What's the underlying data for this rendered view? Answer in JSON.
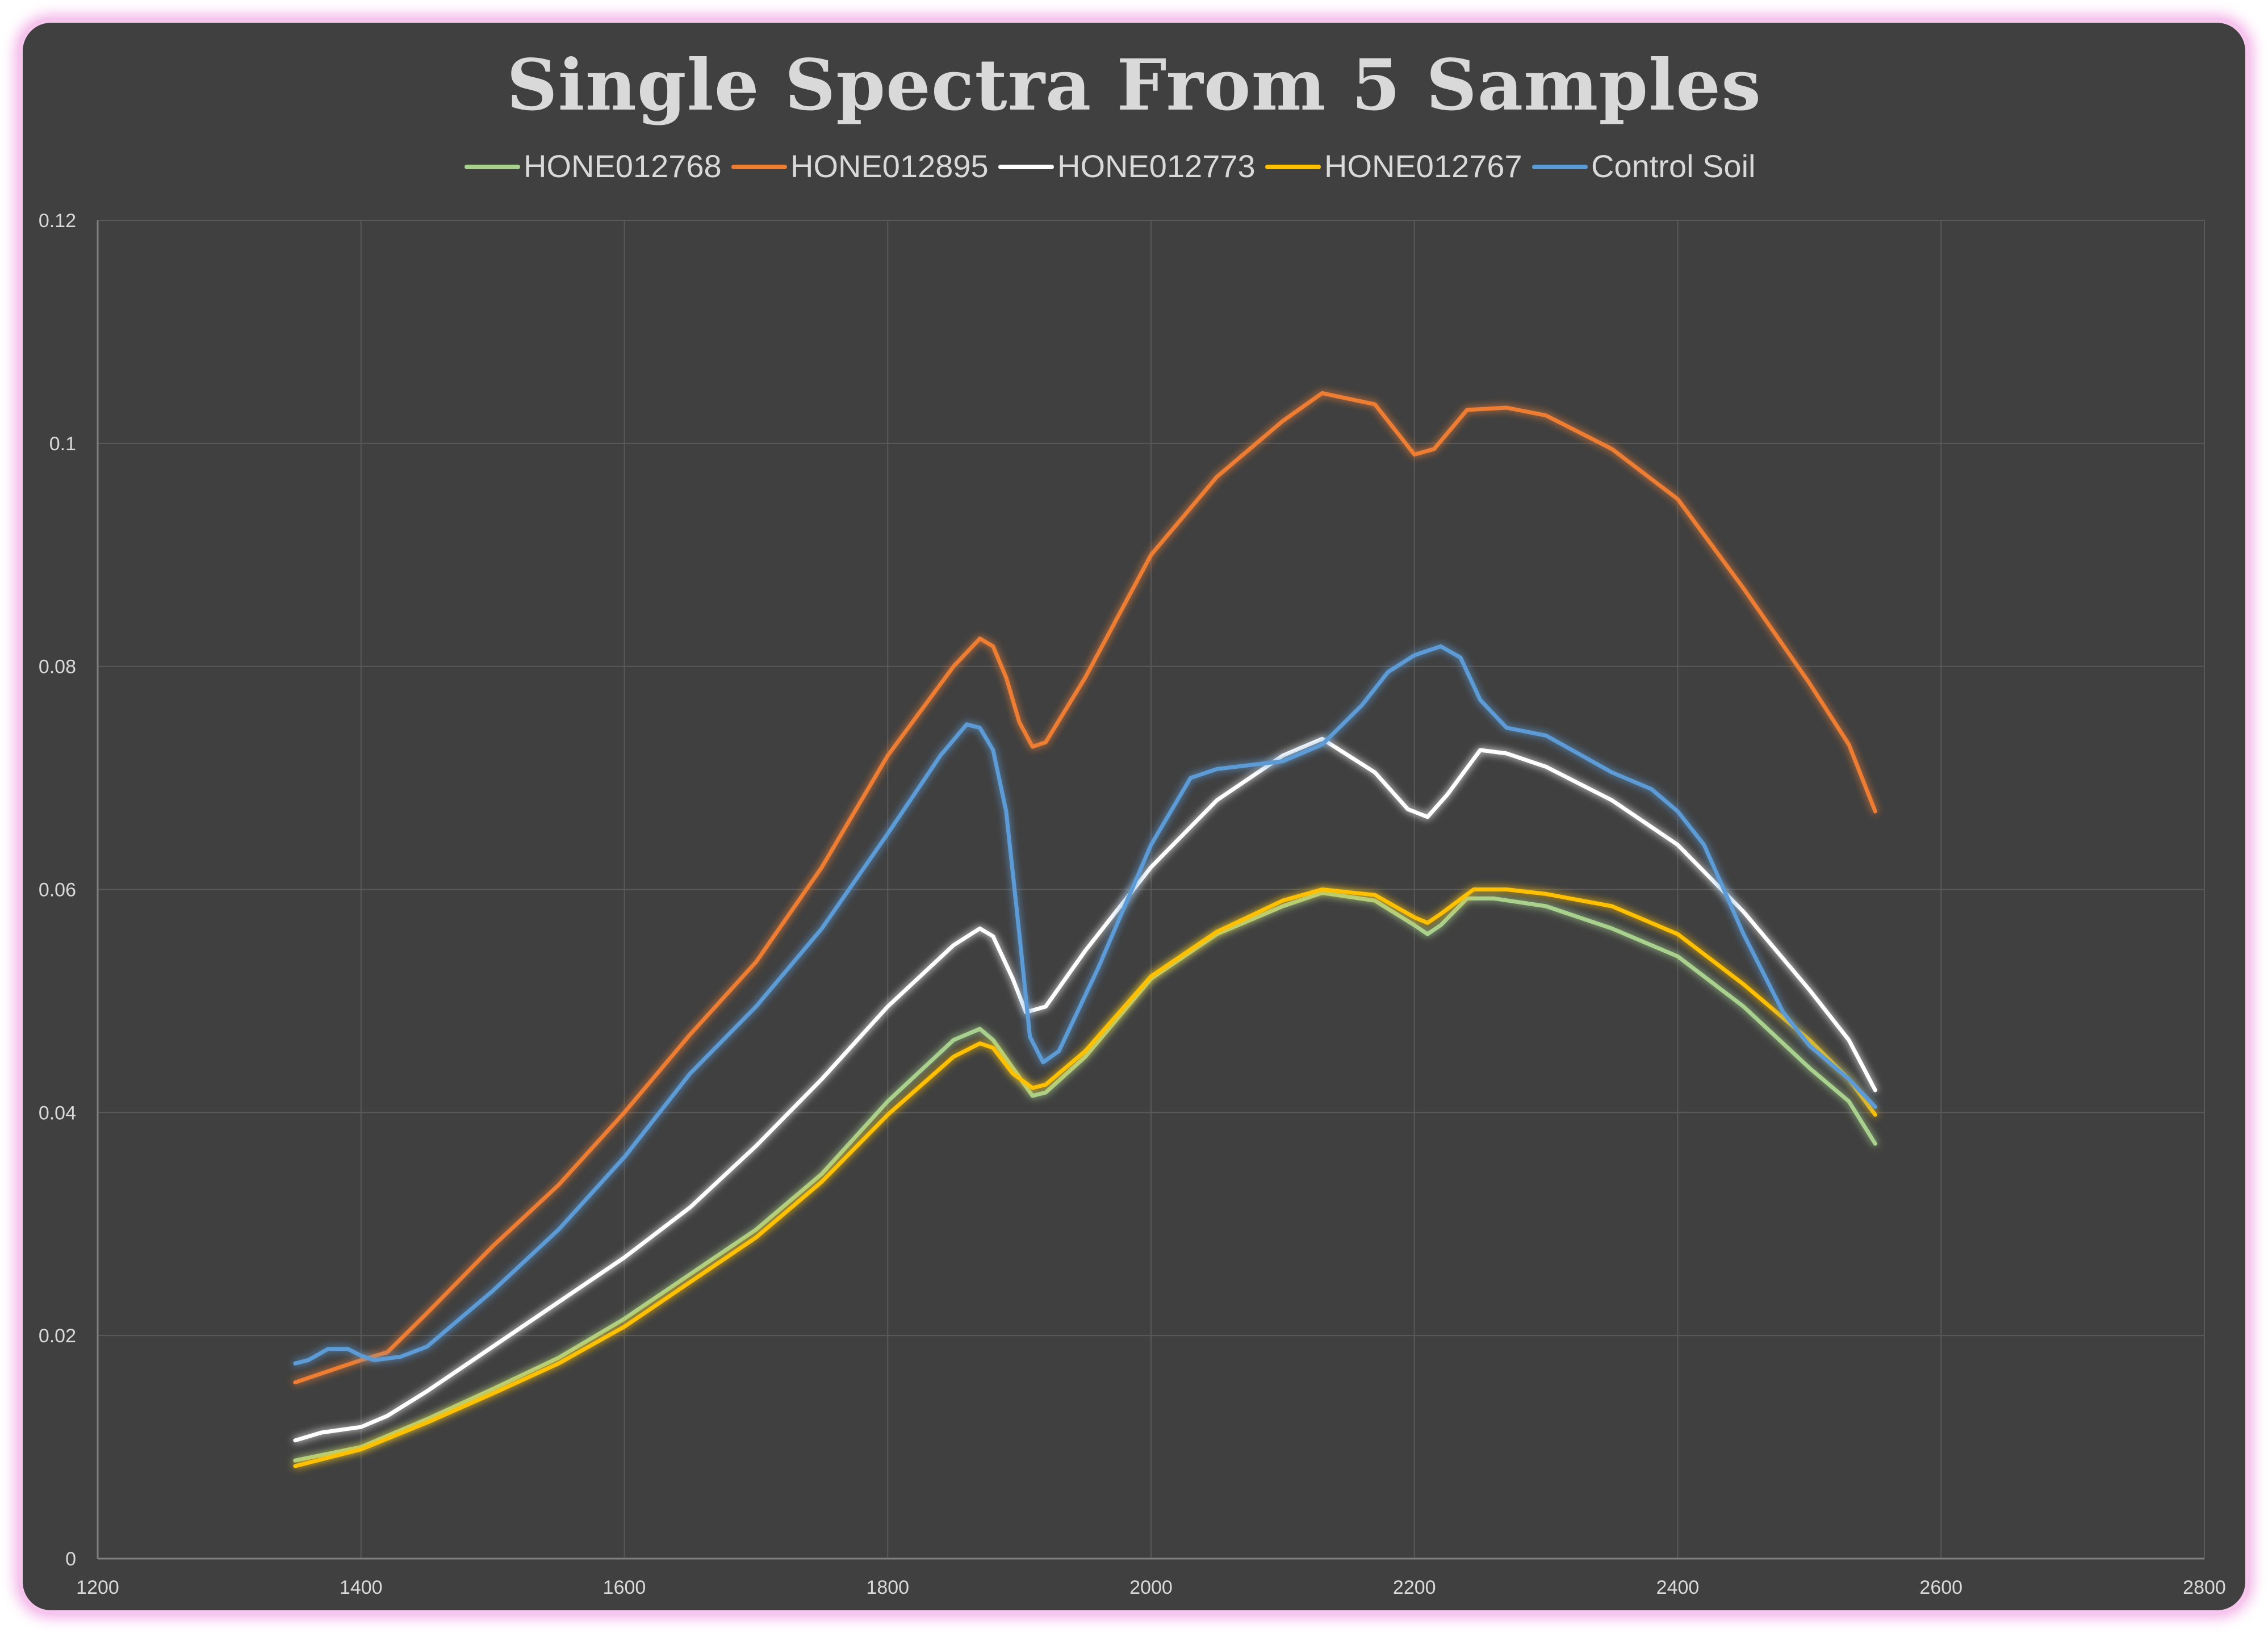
{
  "chart_data": {
    "type": "line",
    "title": "Single Spectra From 5 Samples",
    "xlabel": "",
    "ylabel": "",
    "xlim": [
      1200,
      2800
    ],
    "ylim": [
      0,
      0.12
    ],
    "x_ticks": [
      "1200",
      "1400",
      "1600",
      "1800",
      "2000",
      "2200",
      "2400",
      "2600",
      "2800"
    ],
    "y_ticks": [
      "0",
      "0.02",
      "0.04",
      "0.06",
      "0.08",
      "0.1",
      "0.12"
    ],
    "grid": true,
    "legend_position": "top",
    "series": [
      {
        "name": "HONE012768",
        "color": "#a9d18e",
        "points": [
          [
            1350,
            0.0088
          ],
          [
            1400,
            0.01
          ],
          [
            1450,
            0.0125
          ],
          [
            1500,
            0.0152
          ],
          [
            1550,
            0.018
          ],
          [
            1600,
            0.0215
          ],
          [
            1650,
            0.0255
          ],
          [
            1700,
            0.0295
          ],
          [
            1750,
            0.0345
          ],
          [
            1800,
            0.041
          ],
          [
            1850,
            0.0465
          ],
          [
            1870,
            0.0475
          ],
          [
            1880,
            0.0465
          ],
          [
            1895,
            0.044
          ],
          [
            1910,
            0.0415
          ],
          [
            1920,
            0.0418
          ],
          [
            1950,
            0.045
          ],
          [
            2000,
            0.052
          ],
          [
            2050,
            0.056
          ],
          [
            2100,
            0.0585
          ],
          [
            2130,
            0.0597
          ],
          [
            2170,
            0.059
          ],
          [
            2200,
            0.0568
          ],
          [
            2210,
            0.056
          ],
          [
            2220,
            0.0568
          ],
          [
            2240,
            0.0592
          ],
          [
            2260,
            0.0592
          ],
          [
            2300,
            0.0585
          ],
          [
            2350,
            0.0565
          ],
          [
            2400,
            0.054
          ],
          [
            2450,
            0.0495
          ],
          [
            2500,
            0.044
          ],
          [
            2530,
            0.041
          ],
          [
            2550,
            0.0372
          ]
        ]
      },
      {
        "name": "HONE012895",
        "color": "#ed7d31",
        "points": [
          [
            1350,
            0.0158
          ],
          [
            1380,
            0.017
          ],
          [
            1400,
            0.0178
          ],
          [
            1420,
            0.0185
          ],
          [
            1450,
            0.022
          ],
          [
            1500,
            0.028
          ],
          [
            1550,
            0.0335
          ],
          [
            1600,
            0.04
          ],
          [
            1650,
            0.047
          ],
          [
            1700,
            0.0535
          ],
          [
            1750,
            0.062
          ],
          [
            1800,
            0.072
          ],
          [
            1850,
            0.08
          ],
          [
            1870,
            0.0825
          ],
          [
            1880,
            0.0818
          ],
          [
            1890,
            0.079
          ],
          [
            1900,
            0.075
          ],
          [
            1910,
            0.0728
          ],
          [
            1920,
            0.0732
          ],
          [
            1950,
            0.079
          ],
          [
            2000,
            0.09
          ],
          [
            2050,
            0.097
          ],
          [
            2100,
            0.102
          ],
          [
            2130,
            0.1045
          ],
          [
            2170,
            0.1035
          ],
          [
            2190,
            0.1005
          ],
          [
            2200,
            0.099
          ],
          [
            2215,
            0.0995
          ],
          [
            2240,
            0.103
          ],
          [
            2270,
            0.1032
          ],
          [
            2300,
            0.1025
          ],
          [
            2350,
            0.0995
          ],
          [
            2400,
            0.095
          ],
          [
            2450,
            0.087
          ],
          [
            2500,
            0.0785
          ],
          [
            2530,
            0.073
          ],
          [
            2550,
            0.067
          ]
        ]
      },
      {
        "name": "HONE012773",
        "color": "#ffffff",
        "points": [
          [
            1350,
            0.0106
          ],
          [
            1370,
            0.0113
          ],
          [
            1400,
            0.0118
          ],
          [
            1420,
            0.0128
          ],
          [
            1450,
            0.015
          ],
          [
            1500,
            0.019
          ],
          [
            1550,
            0.023
          ],
          [
            1600,
            0.027
          ],
          [
            1650,
            0.0315
          ],
          [
            1700,
            0.037
          ],
          [
            1750,
            0.043
          ],
          [
            1800,
            0.0495
          ],
          [
            1850,
            0.055
          ],
          [
            1870,
            0.0565
          ],
          [
            1880,
            0.0558
          ],
          [
            1895,
            0.052
          ],
          [
            1905,
            0.049
          ],
          [
            1920,
            0.0495
          ],
          [
            1950,
            0.0545
          ],
          [
            2000,
            0.062
          ],
          [
            2050,
            0.068
          ],
          [
            2100,
            0.072
          ],
          [
            2130,
            0.0735
          ],
          [
            2170,
            0.0705
          ],
          [
            2195,
            0.0672
          ],
          [
            2210,
            0.0665
          ],
          [
            2225,
            0.0685
          ],
          [
            2250,
            0.0725
          ],
          [
            2270,
            0.0722
          ],
          [
            2300,
            0.071
          ],
          [
            2350,
            0.068
          ],
          [
            2400,
            0.064
          ],
          [
            2450,
            0.058
          ],
          [
            2500,
            0.051
          ],
          [
            2530,
            0.0465
          ],
          [
            2550,
            0.042
          ]
        ]
      },
      {
        "name": "HONE012767",
        "color": "#ffc000",
        "points": [
          [
            1350,
            0.0083
          ],
          [
            1400,
            0.0098
          ],
          [
            1450,
            0.0122
          ],
          [
            1500,
            0.0148
          ],
          [
            1550,
            0.0175
          ],
          [
            1600,
            0.0208
          ],
          [
            1650,
            0.0248
          ],
          [
            1700,
            0.0288
          ],
          [
            1750,
            0.0338
          ],
          [
            1800,
            0.0398
          ],
          [
            1850,
            0.045
          ],
          [
            1870,
            0.0462
          ],
          [
            1880,
            0.0458
          ],
          [
            1895,
            0.0435
          ],
          [
            1910,
            0.0422
          ],
          [
            1920,
            0.0425
          ],
          [
            1950,
            0.0455
          ],
          [
            2000,
            0.0522
          ],
          [
            2050,
            0.0562
          ],
          [
            2100,
            0.059
          ],
          [
            2130,
            0.06
          ],
          [
            2170,
            0.0595
          ],
          [
            2200,
            0.0575
          ],
          [
            2210,
            0.057
          ],
          [
            2220,
            0.0578
          ],
          [
            2245,
            0.06
          ],
          [
            2270,
            0.06
          ],
          [
            2300,
            0.0596
          ],
          [
            2350,
            0.0585
          ],
          [
            2400,
            0.056
          ],
          [
            2450,
            0.0515
          ],
          [
            2500,
            0.0465
          ],
          [
            2530,
            0.043
          ],
          [
            2550,
            0.0398
          ]
        ]
      },
      {
        "name": "Control Soil",
        "color": "#5b9bd5",
        "points": [
          [
            1350,
            0.0175
          ],
          [
            1360,
            0.0178
          ],
          [
            1375,
            0.0188
          ],
          [
            1390,
            0.0188
          ],
          [
            1400,
            0.0182
          ],
          [
            1410,
            0.0178
          ],
          [
            1430,
            0.0181
          ],
          [
            1450,
            0.019
          ],
          [
            1500,
            0.024
          ],
          [
            1550,
            0.0295
          ],
          [
            1600,
            0.036
          ],
          [
            1650,
            0.0435
          ],
          [
            1700,
            0.0495
          ],
          [
            1750,
            0.0565
          ],
          [
            1800,
            0.065
          ],
          [
            1840,
            0.072
          ],
          [
            1860,
            0.0748
          ],
          [
            1870,
            0.0745
          ],
          [
            1880,
            0.0725
          ],
          [
            1890,
            0.067
          ],
          [
            1900,
            0.056
          ],
          [
            1908,
            0.0468
          ],
          [
            1918,
            0.0445
          ],
          [
            1930,
            0.0455
          ],
          [
            1960,
            0.053
          ],
          [
            2000,
            0.064
          ],
          [
            2030,
            0.07
          ],
          [
            2050,
            0.0708
          ],
          [
            2100,
            0.0715
          ],
          [
            2130,
            0.073
          ],
          [
            2160,
            0.0765
          ],
          [
            2180,
            0.0795
          ],
          [
            2200,
            0.081
          ],
          [
            2220,
            0.0818
          ],
          [
            2235,
            0.0808
          ],
          [
            2250,
            0.077
          ],
          [
            2270,
            0.0745
          ],
          [
            2300,
            0.0738
          ],
          [
            2350,
            0.0705
          ],
          [
            2380,
            0.069
          ],
          [
            2400,
            0.067
          ],
          [
            2420,
            0.064
          ],
          [
            2450,
            0.056
          ],
          [
            2480,
            0.049
          ],
          [
            2500,
            0.046
          ],
          [
            2530,
            0.043
          ],
          [
            2550,
            0.0405
          ]
        ]
      }
    ]
  }
}
